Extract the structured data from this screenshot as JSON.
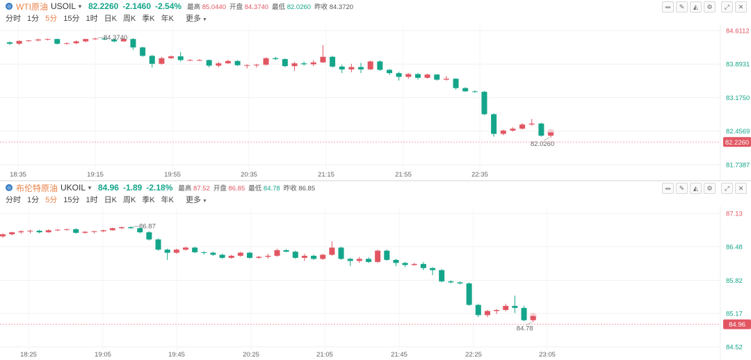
{
  "intervals": [
    "分时",
    "1分",
    "5分",
    "15分",
    "1时",
    "日K",
    "周K",
    "季K",
    "年K",
    "更多"
  ],
  "active_interval": "5分",
  "labels": {
    "high": "最高",
    "open": "开盘",
    "low": "最低",
    "prev": "昨收"
  },
  "colors": {
    "up": "#e15662",
    "down": "#14a58a",
    "axis_red": "#e15662",
    "axis_green": "#14a58a",
    "name": "#e8834a"
  },
  "toolbar_icons": [
    "chart-type-icon",
    "draw-icon",
    "indicator-icon",
    "settings-icon",
    "expand-icon",
    "close-icon"
  ],
  "chart_data": [
    {
      "type": "candlestick",
      "name": "WTI原油",
      "code": "USOIL",
      "price": "82.2260",
      "change": "-2.1460",
      "change_pct": "-2.54%",
      "high": "85.0440",
      "open": "84.3740",
      "low": "82.0260",
      "prev_close": "84.3720",
      "high_label": "84.3740",
      "low_label": "82.0260",
      "current_label": "82.2260",
      "y_ticks": [
        {
          "label": "84.6112",
          "value": 84.6112,
          "color": "red"
        },
        {
          "label": "83.8931",
          "value": 83.8931,
          "color": "green"
        },
        {
          "label": "83.1750",
          "value": 83.175,
          "color": "green"
        },
        {
          "label": "82.4569",
          "value": 82.4569,
          "color": "green"
        },
        {
          "label": "81.7387",
          "value": 81.7387,
          "color": "green"
        }
      ],
      "x_ticks": [
        "18:35",
        "19:15",
        "19:55",
        "20:35",
        "21:15",
        "21:55",
        "22:35"
      ],
      "candles": [
        [
          84.36,
          84.38,
          84.3,
          84.33
        ],
        [
          84.33,
          84.4,
          84.3,
          84.39
        ],
        [
          84.39,
          84.41,
          84.37,
          84.4
        ],
        [
          84.4,
          84.44,
          84.38,
          84.42
        ],
        [
          84.42,
          84.44,
          84.4,
          84.43
        ],
        [
          84.43,
          84.44,
          84.31,
          84.33
        ],
        [
          84.33,
          84.36,
          84.31,
          84.34
        ],
        [
          84.34,
          84.4,
          84.32,
          84.38
        ],
        [
          84.38,
          84.44,
          84.36,
          84.43
        ],
        [
          84.43,
          84.46,
          84.41,
          84.44
        ],
        [
          84.44,
          84.46,
          84.41,
          84.42
        ],
        [
          84.42,
          84.44,
          84.36,
          84.38
        ],
        [
          84.38,
          84.44,
          84.37,
          84.43
        ],
        [
          84.43,
          84.45,
          84.2,
          84.25
        ],
        [
          84.25,
          84.27,
          84.05,
          84.07
        ],
        [
          84.07,
          84.09,
          83.82,
          83.9
        ],
        [
          83.9,
          84.05,
          83.88,
          84.02
        ],
        [
          84.02,
          84.08,
          84.0,
          84.06
        ],
        [
          84.06,
          84.15,
          83.95,
          83.98
        ],
        [
          83.98,
          84.0,
          83.96,
          83.98
        ],
        [
          83.98,
          84.0,
          83.96,
          83.98
        ],
        [
          83.98,
          83.99,
          83.82,
          83.86
        ],
        [
          83.86,
          83.94,
          83.82,
          83.91
        ],
        [
          83.91,
          83.99,
          83.9,
          83.96
        ],
        [
          83.96,
          83.98,
          83.85,
          83.87
        ],
        [
          83.87,
          83.89,
          83.8,
          83.87
        ],
        [
          83.87,
          83.9,
          83.82,
          83.88
        ],
        [
          83.88,
          84.04,
          83.86,
          84.02
        ],
        [
          84.02,
          84.05,
          83.98,
          84.0
        ],
        [
          84.0,
          84.02,
          83.83,
          83.85
        ],
        [
          83.85,
          83.94,
          83.75,
          83.91
        ],
        [
          83.91,
          83.95,
          83.86,
          83.89
        ],
        [
          83.89,
          83.98,
          83.85,
          83.93
        ],
        [
          83.93,
          84.3,
          83.92,
          84.05
        ],
        [
          84.05,
          84.07,
          83.82,
          83.84
        ],
        [
          83.84,
          83.88,
          83.7,
          83.78
        ],
        [
          83.78,
          83.9,
          83.72,
          83.83
        ],
        [
          83.83,
          83.92,
          83.7,
          83.78
        ],
        [
          83.78,
          83.97,
          83.77,
          83.95
        ],
        [
          83.95,
          83.97,
          83.75,
          83.77
        ],
        [
          83.77,
          83.79,
          83.66,
          83.7
        ],
        [
          83.7,
          83.73,
          83.54,
          83.62
        ],
        [
          83.62,
          83.7,
          83.58,
          83.68
        ],
        [
          83.68,
          83.7,
          83.56,
          83.6
        ],
        [
          83.6,
          83.69,
          83.58,
          83.67
        ],
        [
          83.67,
          83.68,
          83.54,
          83.56
        ],
        [
          83.56,
          83.64,
          83.54,
          83.58
        ],
        [
          83.58,
          83.59,
          83.35,
          83.38
        ],
        [
          83.38,
          83.4,
          83.3,
          83.31
        ],
        [
          83.31,
          83.33,
          83.28,
          83.3
        ],
        [
          83.3,
          83.32,
          82.8,
          82.82
        ],
        [
          82.82,
          82.84,
          82.34,
          82.4
        ],
        [
          82.4,
          82.49,
          82.37,
          82.47
        ],
        [
          82.47,
          82.54,
          82.45,
          82.51
        ],
        [
          82.51,
          82.63,
          82.49,
          82.6
        ],
        [
          82.6,
          82.72,
          82.57,
          82.62
        ],
        [
          82.62,
          82.64,
          82.34,
          82.36
        ],
        [
          82.36,
          82.44,
          82.32,
          82.43
        ]
      ]
    },
    {
      "type": "candlestick",
      "name": "布伦特原油",
      "code": "UKOIL",
      "price": "84.96",
      "change": "-1.89",
      "change_pct": "-2.18%",
      "high": "87.52",
      "open": "86.85",
      "low": "84.78",
      "prev_close": "86.85",
      "high_label": "86.87",
      "low_label": "84.78",
      "current_label": "84.96",
      "y_ticks": [
        {
          "label": "87.13",
          "value": 87.13,
          "color": "red"
        },
        {
          "label": "86.48",
          "value": 86.48,
          "color": "green"
        },
        {
          "label": "85.82",
          "value": 85.82,
          "color": "green"
        },
        {
          "label": "85.17",
          "value": 85.17,
          "color": "green"
        },
        {
          "label": "84.52",
          "value": 84.52,
          "color": "green"
        }
      ],
      "x_ticks": [
        "18:25",
        "19:05",
        "19:45",
        "20:25",
        "21:05",
        "21:45",
        "22:25",
        "23:05"
      ],
      "candles": [
        [
          86.68,
          86.74,
          86.65,
          86.72
        ],
        [
          86.72,
          86.77,
          86.7,
          86.76
        ],
        [
          86.76,
          86.8,
          86.73,
          86.78
        ],
        [
          86.78,
          86.81,
          86.74,
          86.79
        ],
        [
          86.79,
          86.81,
          86.74,
          86.76
        ],
        [
          86.76,
          86.82,
          86.75,
          86.8
        ],
        [
          86.8,
          86.82,
          86.78,
          86.81
        ],
        [
          86.81,
          86.83,
          86.79,
          86.82
        ],
        [
          86.82,
          86.84,
          86.73,
          86.75
        ],
        [
          86.75,
          86.78,
          86.73,
          86.77
        ],
        [
          86.77,
          86.79,
          86.74,
          86.78
        ],
        [
          86.78,
          86.81,
          86.76,
          86.8
        ],
        [
          86.8,
          86.85,
          86.79,
          86.84
        ],
        [
          86.84,
          86.87,
          86.82,
          86.86
        ],
        [
          86.86,
          86.88,
          86.83,
          86.84
        ],
        [
          86.84,
          86.86,
          86.74,
          86.76
        ],
        [
          86.76,
          86.78,
          86.6,
          86.62
        ],
        [
          86.62,
          86.64,
          86.4,
          86.42
        ],
        [
          86.42,
          86.44,
          86.22,
          86.36
        ],
        [
          86.36,
          86.44,
          86.34,
          86.42
        ],
        [
          86.42,
          86.48,
          86.4,
          86.46
        ],
        [
          86.46,
          86.48,
          86.35,
          86.37
        ],
        [
          86.37,
          86.39,
          86.32,
          86.36
        ],
        [
          86.36,
          86.38,
          86.3,
          86.32
        ],
        [
          86.32,
          86.34,
          86.24,
          86.26
        ],
        [
          86.26,
          86.32,
          86.24,
          86.3
        ],
        [
          86.3,
          86.38,
          86.28,
          86.36
        ],
        [
          86.36,
          86.38,
          86.24,
          86.26
        ],
        [
          86.26,
          86.3,
          86.24,
          86.28
        ],
        [
          86.28,
          86.34,
          86.24,
          86.3
        ],
        [
          86.3,
          86.44,
          86.28,
          86.41
        ],
        [
          86.41,
          86.43,
          86.37,
          86.38
        ],
        [
          86.38,
          86.4,
          86.24,
          86.26
        ],
        [
          86.26,
          86.34,
          86.2,
          86.3
        ],
        [
          86.3,
          86.32,
          86.22,
          86.24
        ],
        [
          86.24,
          86.34,
          86.22,
          86.32
        ],
        [
          86.32,
          86.58,
          86.3,
          86.46
        ],
        [
          86.46,
          86.48,
          86.22,
          86.24
        ],
        [
          86.24,
          86.26,
          86.1,
          86.2
        ],
        [
          86.2,
          86.28,
          86.16,
          86.24
        ],
        [
          86.24,
          86.27,
          86.16,
          86.18
        ],
        [
          86.18,
          86.42,
          86.16,
          86.4
        ],
        [
          86.4,
          86.42,
          86.2,
          86.22
        ],
        [
          86.22,
          86.24,
          86.1,
          86.16
        ],
        [
          86.16,
          86.18,
          86.08,
          86.12
        ],
        [
          86.12,
          86.16,
          86.1,
          86.14
        ],
        [
          86.14,
          86.18,
          86.02,
          86.06
        ],
        [
          86.06,
          86.08,
          85.92,
          86.02
        ],
        [
          86.02,
          86.04,
          85.78,
          85.8
        ],
        [
          85.8,
          85.82,
          85.76,
          85.78
        ],
        [
          85.78,
          85.8,
          85.74,
          85.76
        ],
        [
          85.76,
          85.78,
          85.32,
          85.34
        ],
        [
          85.34,
          85.36,
          85.1,
          85.14
        ],
        [
          85.14,
          85.24,
          85.1,
          85.22
        ],
        [
          85.22,
          85.26,
          85.16,
          85.24
        ],
        [
          85.24,
          85.36,
          85.22,
          85.32
        ],
        [
          85.32,
          85.52,
          85.18,
          85.28
        ],
        [
          85.28,
          85.32,
          85.02,
          85.04
        ],
        [
          85.04,
          85.14,
          85.0,
          85.12
        ]
      ]
    }
  ]
}
